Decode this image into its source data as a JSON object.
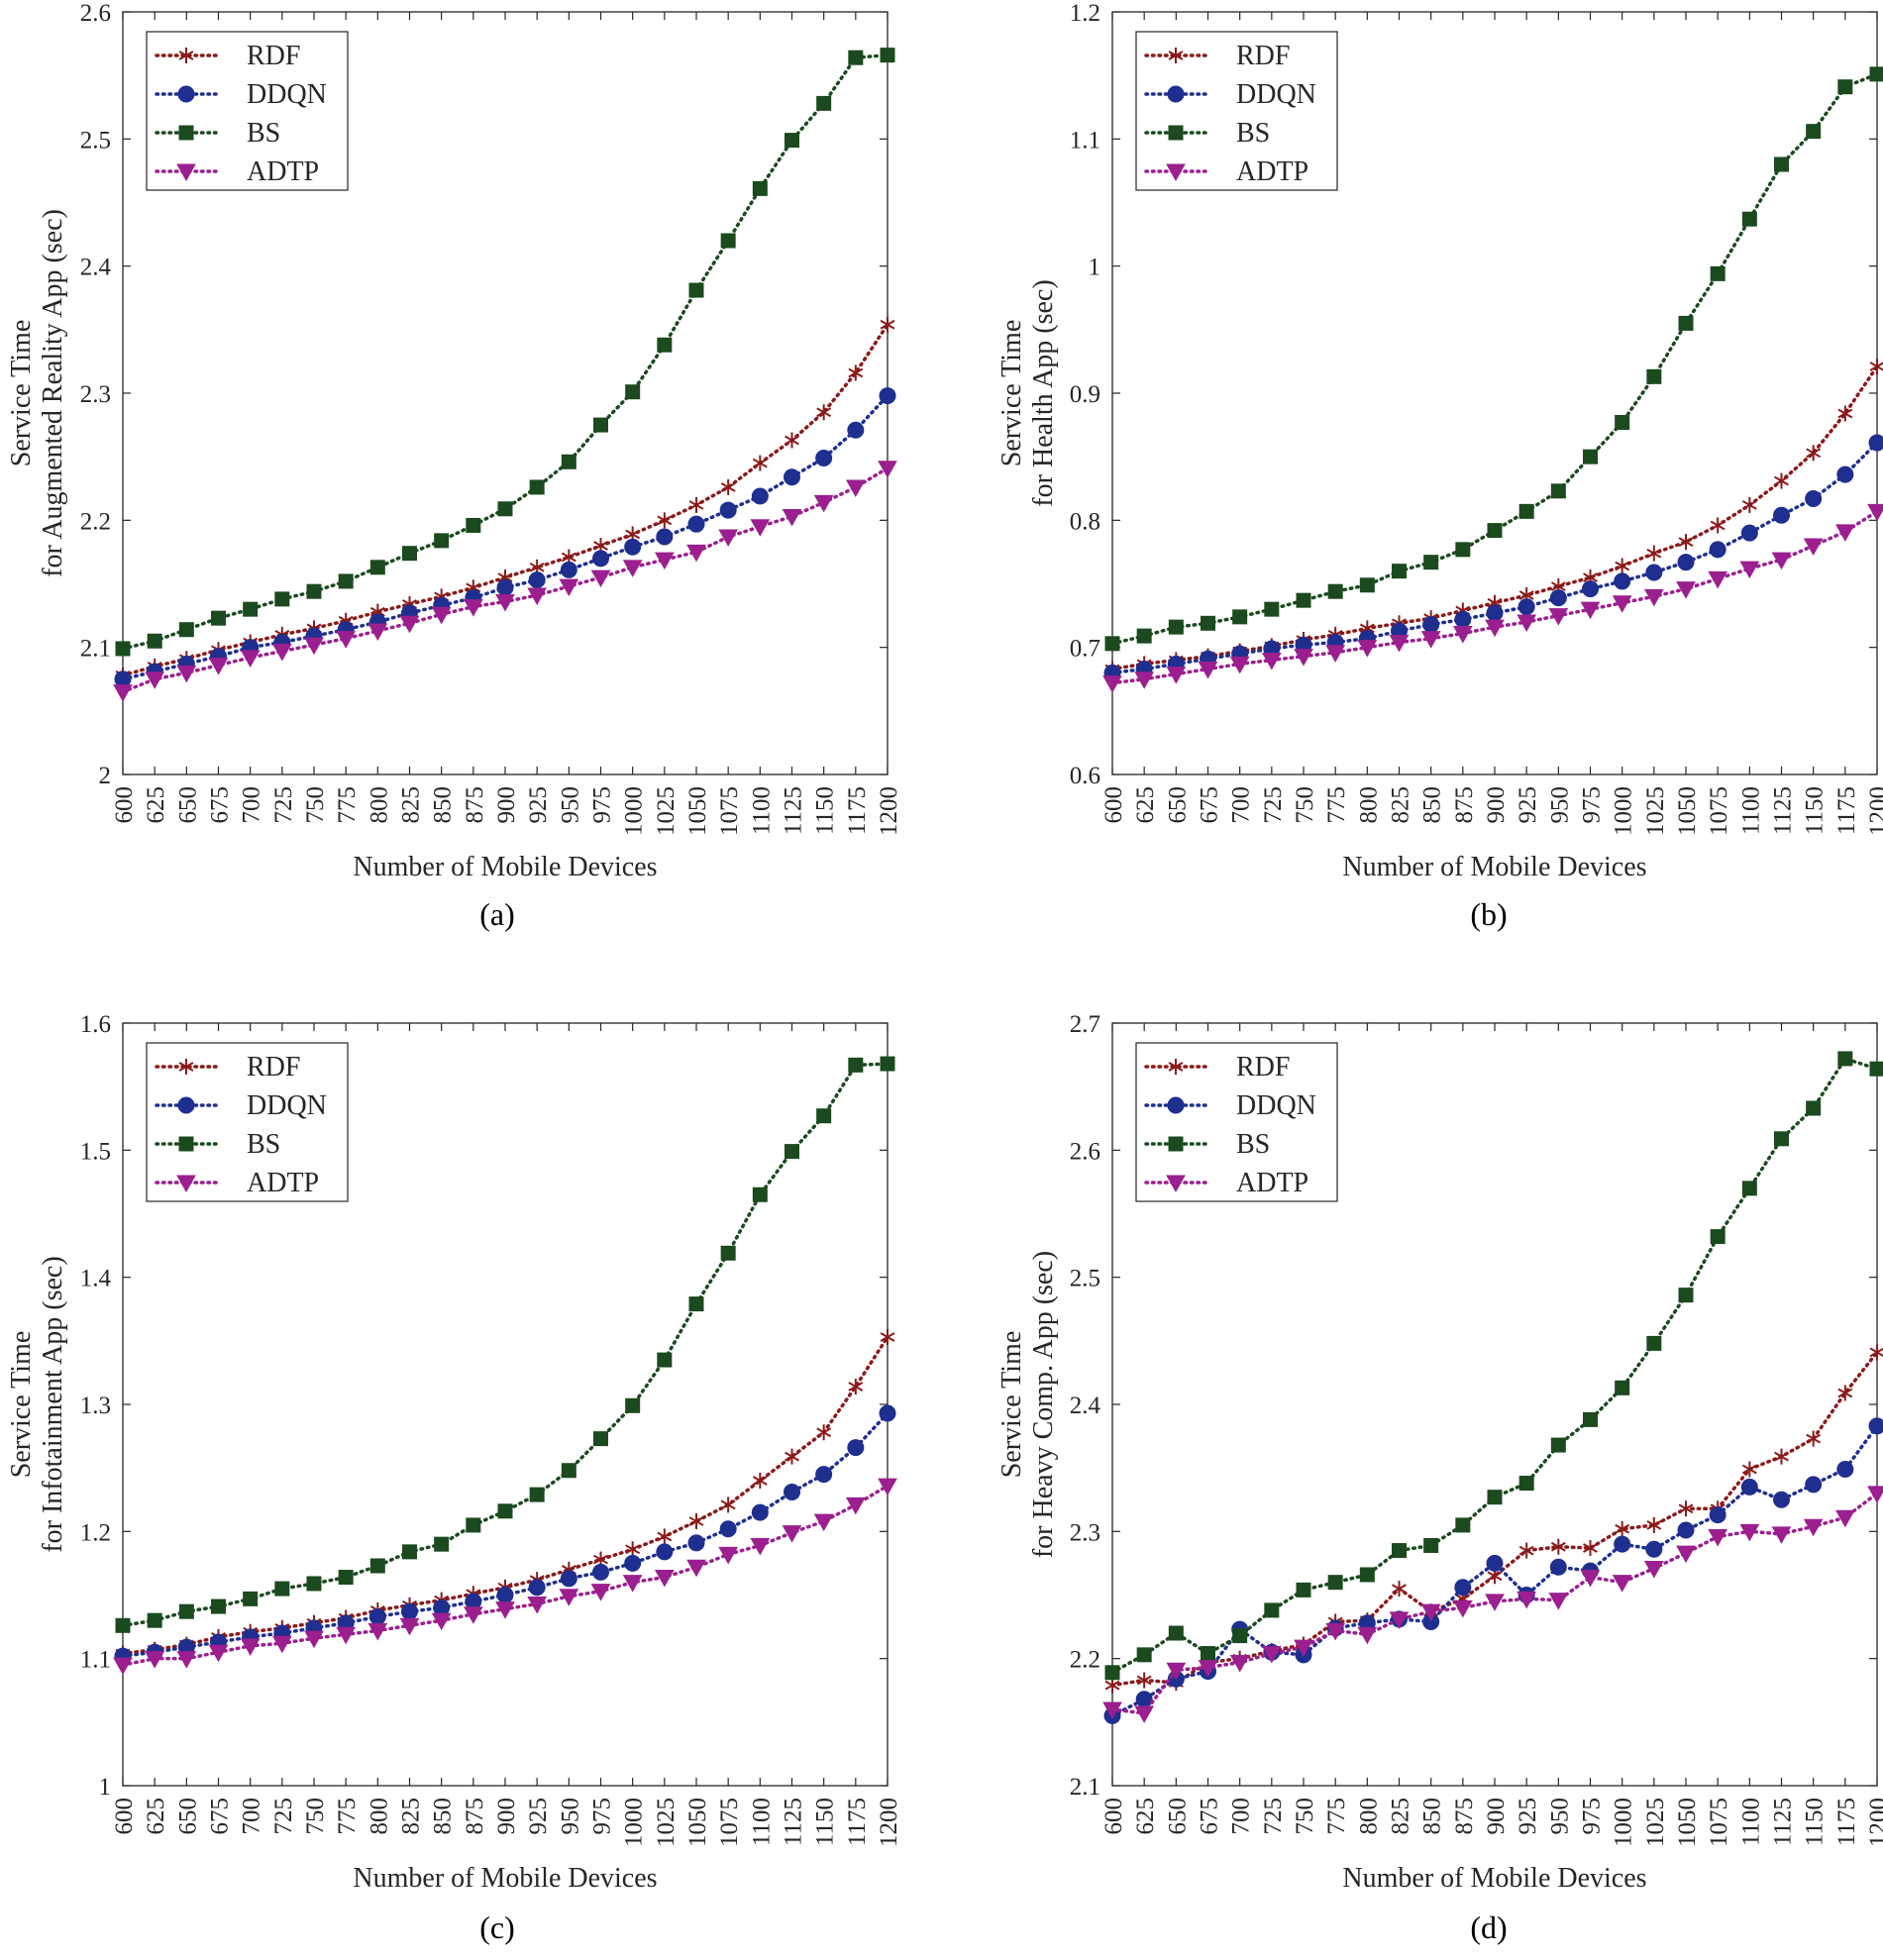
{
  "chart_data": [
    {
      "id": "a",
      "type": "line",
      "caption": "(a)",
      "xlabel": "Number of Mobile Devices",
      "ylabel_lines": [
        "Service Time",
        "for Augmented Reality App (sec)"
      ],
      "x": [
        600,
        625,
        650,
        675,
        700,
        725,
        750,
        775,
        800,
        825,
        850,
        875,
        900,
        925,
        950,
        975,
        1000,
        1025,
        1050,
        1075,
        1100,
        1125,
        1150,
        1175,
        1200
      ],
      "ylim": [
        2,
        2.6
      ],
      "yticks": [
        2,
        2.1,
        2.2,
        2.3,
        2.4,
        2.5,
        2.6
      ],
      "ytick_labels": [
        "2",
        "2.1",
        "2.2",
        "2.3",
        "2.4",
        "2.5",
        "2.6"
      ],
      "legend_position": "top-left",
      "series": [
        {
          "name": "RDF",
          "marker": "asterisk",
          "color": "#8B1A1A",
          "values": [
            2.078,
            2.085,
            2.091,
            2.098,
            2.104,
            2.11,
            2.115,
            2.121,
            2.128,
            2.134,
            2.14,
            2.147,
            2.155,
            2.163,
            2.171,
            2.18,
            2.189,
            2.2,
            2.212,
            2.226,
            2.245,
            2.263,
            2.285,
            2.316,
            2.354
          ]
        },
        {
          "name": "DDQN",
          "marker": "circle",
          "color": "#1F2F8F",
          "values": [
            2.075,
            2.081,
            2.087,
            2.093,
            2.1,
            2.104,
            2.109,
            2.114,
            2.12,
            2.127,
            2.133,
            2.139,
            2.147,
            2.153,
            2.161,
            2.17,
            2.179,
            2.187,
            2.197,
            2.208,
            2.219,
            2.234,
            2.249,
            2.271,
            2.298
          ]
        },
        {
          "name": "BS",
          "marker": "square",
          "color": "#1B4A1F",
          "values": [
            2.099,
            2.105,
            2.114,
            2.123,
            2.13,
            2.138,
            2.144,
            2.152,
            2.163,
            2.174,
            2.184,
            2.196,
            2.209,
            2.226,
            2.246,
            2.275,
            2.301,
            2.338,
            2.381,
            2.42,
            2.461,
            2.499,
            2.528,
            2.564,
            2.566
          ]
        },
        {
          "name": "ADTP",
          "marker": "triangle-down",
          "color": "#9B1F8F",
          "values": [
            2.065,
            2.075,
            2.08,
            2.086,
            2.092,
            2.097,
            2.102,
            2.107,
            2.113,
            2.119,
            2.126,
            2.132,
            2.136,
            2.141,
            2.148,
            2.155,
            2.163,
            2.169,
            2.175,
            2.187,
            2.195,
            2.203,
            2.214,
            2.226,
            2.241
          ]
        }
      ]
    },
    {
      "id": "b",
      "type": "line",
      "caption": "(b)",
      "xlabel": "Number of Mobile Devices",
      "ylabel_lines": [
        "Service Time",
        "for Health App (sec)"
      ],
      "x": [
        600,
        625,
        650,
        675,
        700,
        725,
        750,
        775,
        800,
        825,
        850,
        875,
        900,
        925,
        950,
        975,
        1000,
        1025,
        1050,
        1075,
        1100,
        1125,
        1150,
        1175,
        1200
      ],
      "ylim": [
        0.6,
        1.2
      ],
      "yticks": [
        0.6,
        0.7,
        0.8,
        0.9,
        1.0,
        1.1,
        1.2
      ],
      "ytick_labels": [
        "0.6",
        "0.7",
        "0.8",
        "0.9",
        "1",
        "1.1",
        "1.2"
      ],
      "legend_position": "top-left",
      "series": [
        {
          "name": "RDF",
          "marker": "asterisk",
          "color": "#8B1A1A",
          "values": [
            0.683,
            0.687,
            0.69,
            0.693,
            0.697,
            0.701,
            0.706,
            0.71,
            0.715,
            0.719,
            0.723,
            0.729,
            0.735,
            0.741,
            0.748,
            0.755,
            0.764,
            0.774,
            0.783,
            0.796,
            0.812,
            0.831,
            0.853,
            0.884,
            0.921
          ]
        },
        {
          "name": "DDQN",
          "marker": "circle",
          "color": "#1F2F8F",
          "values": [
            0.68,
            0.683,
            0.687,
            0.691,
            0.695,
            0.699,
            0.702,
            0.704,
            0.707,
            0.713,
            0.718,
            0.722,
            0.727,
            0.732,
            0.739,
            0.746,
            0.752,
            0.759,
            0.767,
            0.777,
            0.79,
            0.804,
            0.817,
            0.836,
            0.861
          ]
        },
        {
          "name": "BS",
          "marker": "square",
          "color": "#1B4A1F",
          "values": [
            0.703,
            0.709,
            0.716,
            0.719,
            0.724,
            0.73,
            0.737,
            0.744,
            0.749,
            0.76,
            0.767,
            0.777,
            0.792,
            0.807,
            0.823,
            0.85,
            0.877,
            0.913,
            0.955,
            0.994,
            1.037,
            1.08,
            1.106,
            1.141,
            1.151
          ]
        },
        {
          "name": "ADTP",
          "marker": "triangle-down",
          "color": "#9B1F8F",
          "values": [
            0.672,
            0.675,
            0.679,
            0.683,
            0.687,
            0.69,
            0.693,
            0.696,
            0.7,
            0.704,
            0.707,
            0.711,
            0.716,
            0.72,
            0.725,
            0.73,
            0.735,
            0.74,
            0.746,
            0.754,
            0.762,
            0.769,
            0.78,
            0.791,
            0.807
          ]
        }
      ]
    },
    {
      "id": "c",
      "type": "line",
      "caption": "(c)",
      "xlabel": "Number of Mobile Devices",
      "ylabel_lines": [
        "Service Time",
        "for Infotainment App (sec)"
      ],
      "x": [
        600,
        625,
        650,
        675,
        700,
        725,
        750,
        775,
        800,
        825,
        850,
        875,
        900,
        925,
        950,
        975,
        1000,
        1025,
        1050,
        1075,
        1100,
        1125,
        1150,
        1175,
        1200
      ],
      "ylim": [
        1.0,
        1.6
      ],
      "yticks": [
        1.0,
        1.1,
        1.2,
        1.3,
        1.4,
        1.5,
        1.6
      ],
      "ytick_labels": [
        "1",
        "1.1",
        "1.2",
        "1.3",
        "1.4",
        "1.5",
        "1.6"
      ],
      "legend_position": "top-left",
      "series": [
        {
          "name": "RDF",
          "marker": "asterisk",
          "color": "#8B1A1A",
          "values": [
            1.104,
            1.107,
            1.111,
            1.117,
            1.121,
            1.124,
            1.128,
            1.132,
            1.138,
            1.142,
            1.146,
            1.151,
            1.156,
            1.162,
            1.17,
            1.178,
            1.186,
            1.196,
            1.208,
            1.221,
            1.24,
            1.259,
            1.278,
            1.314,
            1.353
          ]
        },
        {
          "name": "DDQN",
          "marker": "circle",
          "color": "#1F2F8F",
          "values": [
            1.102,
            1.105,
            1.109,
            1.113,
            1.117,
            1.12,
            1.124,
            1.128,
            1.133,
            1.137,
            1.14,
            1.145,
            1.15,
            1.156,
            1.163,
            1.168,
            1.175,
            1.184,
            1.191,
            1.202,
            1.215,
            1.231,
            1.245,
            1.266,
            1.293
          ]
        },
        {
          "name": "BS",
          "marker": "square",
          "color": "#1B4A1F",
          "values": [
            1.126,
            1.13,
            1.137,
            1.141,
            1.147,
            1.155,
            1.159,
            1.164,
            1.173,
            1.184,
            1.19,
            1.205,
            1.216,
            1.229,
            1.248,
            1.273,
            1.299,
            1.335,
            1.379,
            1.419,
            1.465,
            1.499,
            1.527,
            1.567,
            1.568
          ]
        },
        {
          "name": "ADTP",
          "marker": "triangle-down",
          "color": "#9B1F8F",
          "values": [
            1.095,
            1.1,
            1.1,
            1.105,
            1.11,
            1.112,
            1.116,
            1.119,
            1.122,
            1.126,
            1.13,
            1.135,
            1.139,
            1.143,
            1.149,
            1.153,
            1.16,
            1.164,
            1.172,
            1.182,
            1.189,
            1.199,
            1.208,
            1.221,
            1.236
          ]
        }
      ]
    },
    {
      "id": "d",
      "type": "line",
      "caption": "(d)",
      "xlabel": "Number of Mobile Devices",
      "ylabel_lines": [
        "Service Time",
        "for Heavy Comp. App (sec)"
      ],
      "x": [
        600,
        625,
        650,
        675,
        700,
        725,
        750,
        775,
        800,
        825,
        850,
        875,
        900,
        925,
        950,
        975,
        1000,
        1025,
        1050,
        1075,
        1100,
        1125,
        1150,
        1175,
        1200
      ],
      "ylim": [
        2.1,
        2.7
      ],
      "yticks": [
        2.1,
        2.2,
        2.3,
        2.4,
        2.5,
        2.6,
        2.7
      ],
      "ytick_labels": [
        "2.1",
        "2.2",
        "2.3",
        "2.4",
        "2.5",
        "2.6",
        "2.7"
      ],
      "legend_position": "top-left",
      "series": [
        {
          "name": "RDF",
          "marker": "asterisk",
          "color": "#8B1A1A",
          "values": [
            2.179,
            2.183,
            2.181,
            2.197,
            2.2,
            2.206,
            2.211,
            2.229,
            2.23,
            2.255,
            2.237,
            2.247,
            2.265,
            2.285,
            2.288,
            2.287,
            2.302,
            2.305,
            2.318,
            2.318,
            2.349,
            2.359,
            2.373,
            2.409,
            2.441
          ]
        },
        {
          "name": "DDQN",
          "marker": "circle",
          "color": "#1F2F8F",
          "values": [
            2.155,
            2.168,
            2.184,
            2.19,
            2.223,
            2.205,
            2.203,
            2.224,
            2.228,
            2.231,
            2.229,
            2.256,
            2.275,
            2.25,
            2.272,
            2.269,
            2.29,
            2.286,
            2.301,
            2.313,
            2.335,
            2.325,
            2.337,
            2.349,
            2.383
          ]
        },
        {
          "name": "BS",
          "marker": "square",
          "color": "#1B4A1F",
          "values": [
            2.189,
            2.203,
            2.22,
            2.204,
            2.218,
            2.238,
            2.254,
            2.26,
            2.266,
            2.285,
            2.289,
            2.305,
            2.327,
            2.338,
            2.368,
            2.388,
            2.413,
            2.448,
            2.486,
            2.532,
            2.57,
            2.609,
            2.633,
            2.672,
            2.664
          ]
        },
        {
          "name": "ADTP",
          "marker": "triangle-down",
          "color": "#9B1F8F",
          "values": [
            2.16,
            2.157,
            2.191,
            2.193,
            2.197,
            2.204,
            2.209,
            2.222,
            2.219,
            2.231,
            2.237,
            2.24,
            2.245,
            2.247,
            2.246,
            2.264,
            2.26,
            2.271,
            2.283,
            2.296,
            2.3,
            2.298,
            2.304,
            2.311,
            2.33
          ]
        }
      ]
    }
  ]
}
